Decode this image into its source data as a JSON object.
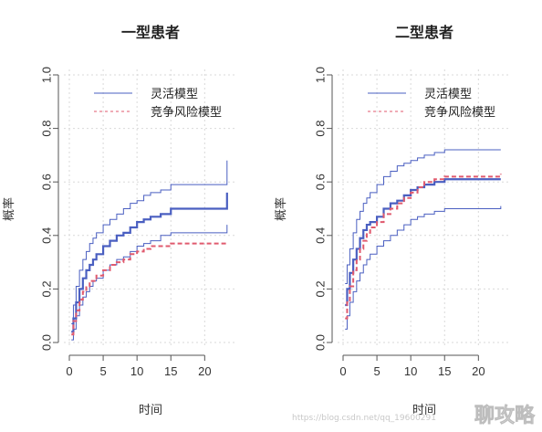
{
  "colors": {
    "flexible": "#4a5fc1",
    "competing": "#e05a6e",
    "grid": "#d9d9d9"
  },
  "chart_data": [
    {
      "type": "line",
      "title": "一型患者",
      "xlabel": "时间",
      "ylabel": "概率",
      "xlim": [
        0,
        24
      ],
      "ylim": [
        0,
        1
      ],
      "xticks": [
        0,
        5,
        10,
        15,
        20
      ],
      "yticks": [
        0.0,
        0.2,
        0.4,
        0.6,
        0.8,
        1.0
      ],
      "ytick_labels": [
        "0.0",
        "0.2",
        "0.4",
        "0.6",
        "0.8",
        "1.0"
      ],
      "grid": true,
      "legend_position": "top-right",
      "legend": [
        "灵活模型",
        "竞争风险模型"
      ],
      "series": [
        {
          "name": "灵活模型",
          "style": "solid-thick",
          "x": [
            0.3,
            0.6,
            1.0,
            1.5,
            2.0,
            2.5,
            3.0,
            3.5,
            4.0,
            5.0,
            6.0,
            7.0,
            8.0,
            9.0,
            10.0,
            11.0,
            12.0,
            13.5,
            15.0,
            23.2,
            23.3
          ],
          "y": [
            0.04,
            0.09,
            0.15,
            0.2,
            0.24,
            0.27,
            0.29,
            0.31,
            0.33,
            0.36,
            0.38,
            0.4,
            0.41,
            0.43,
            0.45,
            0.46,
            0.47,
            0.48,
            0.5,
            0.5,
            0.56
          ]
        },
        {
          "name": "upper-ci",
          "style": "solid-thin",
          "x": [
            0.3,
            0.6,
            1.0,
            1.5,
            2.0,
            2.5,
            3.0,
            3.5,
            4.0,
            5.0,
            6.0,
            7.0,
            8.0,
            9.0,
            10.0,
            11.0,
            12.0,
            13.5,
            15.0,
            23.2,
            23.3
          ],
          "y": [
            0.07,
            0.14,
            0.21,
            0.27,
            0.31,
            0.34,
            0.37,
            0.39,
            0.41,
            0.44,
            0.46,
            0.48,
            0.5,
            0.52,
            0.53,
            0.55,
            0.56,
            0.57,
            0.59,
            0.59,
            0.68
          ]
        },
        {
          "name": "lower-ci",
          "style": "solid-thin",
          "x": [
            0.3,
            0.6,
            1.0,
            1.5,
            2.0,
            2.5,
            3.0,
            3.5,
            4.0,
            5.0,
            6.0,
            7.0,
            8.0,
            9.0,
            10.0,
            11.0,
            12.0,
            13.5,
            15.0,
            23.2,
            23.3
          ],
          "y": [
            0.01,
            0.05,
            0.1,
            0.14,
            0.17,
            0.19,
            0.21,
            0.23,
            0.24,
            0.27,
            0.29,
            0.31,
            0.32,
            0.34,
            0.36,
            0.37,
            0.38,
            0.4,
            0.41,
            0.41,
            0.44
          ]
        },
        {
          "name": "竞争风险模型",
          "style": "dashed",
          "x": [
            0.3,
            0.6,
            1.0,
            1.5,
            2.0,
            2.5,
            3.0,
            4.0,
            5.0,
            6.0,
            7.0,
            8.0,
            9.0,
            10.0,
            11.0,
            12.0,
            13.5,
            15.0,
            23.3
          ],
          "y": [
            0.03,
            0.08,
            0.12,
            0.16,
            0.19,
            0.21,
            0.23,
            0.25,
            0.27,
            0.29,
            0.3,
            0.31,
            0.33,
            0.34,
            0.35,
            0.36,
            0.36,
            0.37,
            0.37
          ]
        }
      ]
    },
    {
      "type": "line",
      "title": "二型患者",
      "xlabel": "时间",
      "ylabel": "概率",
      "xlim": [
        0,
        24
      ],
      "ylim": [
        0,
        1
      ],
      "xticks": [
        0,
        5,
        10,
        15,
        20
      ],
      "yticks": [
        0.0,
        0.2,
        0.4,
        0.6,
        0.8,
        1.0
      ],
      "ytick_labels": [
        "0.0",
        "0.2",
        "0.4",
        "0.6",
        "0.8",
        "1.0"
      ],
      "grid": true,
      "legend_position": "top-right",
      "legend": [
        "灵活模型",
        "竞争风险模型"
      ],
      "series": [
        {
          "name": "灵活模型",
          "style": "solid-thick",
          "x": [
            0.3,
            0.6,
            1.0,
            1.5,
            2.0,
            2.5,
            3.0,
            3.5,
            4.0,
            5.0,
            6.0,
            7.0,
            8.0,
            9.0,
            10.0,
            11.0,
            12.0,
            13.5,
            15.0,
            23.3
          ],
          "y": [
            0.14,
            0.2,
            0.26,
            0.31,
            0.35,
            0.39,
            0.42,
            0.44,
            0.45,
            0.47,
            0.5,
            0.52,
            0.53,
            0.55,
            0.57,
            0.58,
            0.59,
            0.6,
            0.61,
            0.61
          ]
        },
        {
          "name": "upper-ci",
          "style": "solid-thin",
          "x": [
            0.3,
            0.6,
            1.0,
            1.5,
            2.0,
            2.5,
            3.0,
            3.5,
            4.0,
            5.0,
            6.0,
            7.0,
            8.0,
            9.0,
            10.0,
            11.0,
            12.0,
            13.5,
            15.0,
            23.3
          ],
          "y": [
            0.22,
            0.29,
            0.35,
            0.41,
            0.46,
            0.49,
            0.52,
            0.54,
            0.56,
            0.59,
            0.62,
            0.64,
            0.66,
            0.67,
            0.68,
            0.69,
            0.7,
            0.71,
            0.72,
            0.72
          ]
        },
        {
          "name": "lower-ci",
          "style": "solid-thin",
          "x": [
            0.3,
            0.6,
            1.0,
            1.5,
            2.0,
            2.5,
            3.0,
            3.5,
            4.0,
            5.0,
            6.0,
            7.0,
            8.0,
            9.0,
            10.0,
            11.0,
            12.0,
            13.5,
            15.0,
            23.3
          ],
          "y": [
            0.05,
            0.1,
            0.15,
            0.19,
            0.23,
            0.26,
            0.29,
            0.31,
            0.33,
            0.36,
            0.38,
            0.4,
            0.42,
            0.44,
            0.46,
            0.47,
            0.48,
            0.49,
            0.5,
            0.51
          ]
        },
        {
          "name": "竞争风险模型",
          "style": "dashed",
          "x": [
            0.3,
            0.6,
            1.0,
            1.5,
            2.0,
            2.5,
            3.0,
            3.5,
            4.0,
            5.0,
            6.0,
            7.0,
            8.0,
            9.0,
            10.0,
            11.0,
            12.0,
            13.5,
            15.0,
            23.3
          ],
          "y": [
            0.09,
            0.15,
            0.21,
            0.27,
            0.31,
            0.35,
            0.38,
            0.41,
            0.43,
            0.45,
            0.48,
            0.5,
            0.52,
            0.54,
            0.56,
            0.58,
            0.6,
            0.61,
            0.62,
            0.63
          ]
        }
      ]
    }
  ],
  "watermark": {
    "text": "聊攻略",
    "url_text": "https://blog.csdn.net/qq_19600291"
  }
}
